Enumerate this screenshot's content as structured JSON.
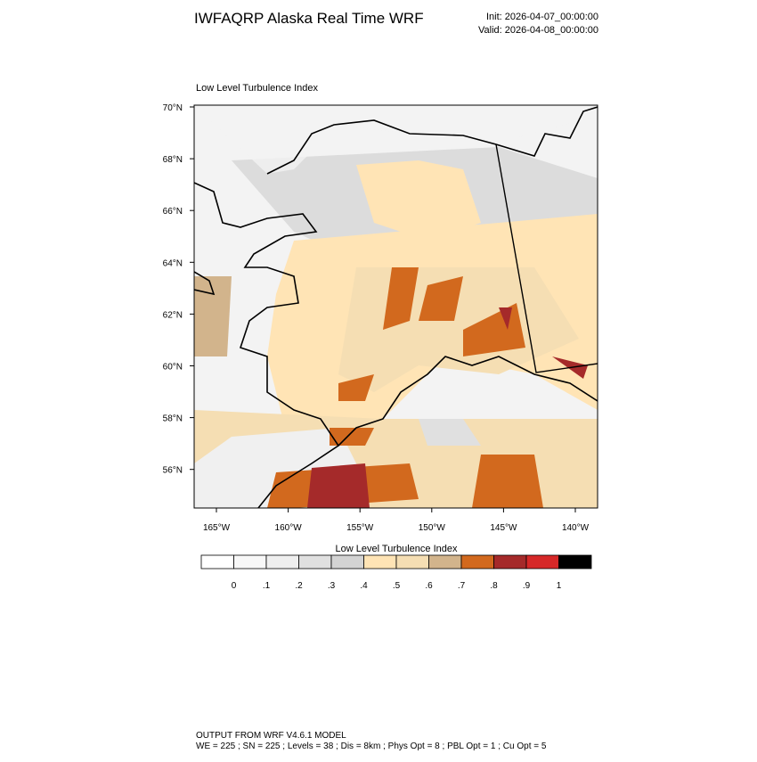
{
  "header": {
    "title": "IWFAQRP Alaska Real Time WRF",
    "init": "Init: 2026-04-07_00:00:00",
    "valid": "Valid: 2026-04-08_00:00:00"
  },
  "map": {
    "title": "Low Level Turbulence Index",
    "lat_labels": [
      "70°N",
      "68°N",
      "66°N",
      "64°N",
      "62°N",
      "60°N",
      "58°N",
      "56°N"
    ],
    "lon_labels": [
      "165°W",
      "160°W",
      "155°W",
      "150°W",
      "145°W",
      "140°W"
    ]
  },
  "colorbar": {
    "title": "Low Level Turbulence Index",
    "labels": [
      "0",
      ".1",
      ".2",
      ".3",
      ".4",
      ".5",
      ".6",
      ".7",
      ".8",
      ".9",
      "1"
    ],
    "colors": [
      "#ffffff",
      "#f8f8f8",
      "#efefef",
      "#e0e0e0",
      "#d3d3d3",
      "#ffe4b5",
      "#f5deb3",
      "#d2b48c",
      "#d2691e",
      "#a52a2a",
      "#d62828",
      "#000000"
    ]
  },
  "footer": {
    "lines": [
      "OUTPUT FROM WRF V4.6.1 MODEL",
      "WE = 225 ; SN = 225 ; Levels = 38 ; Dis = 8km ; Phys Opt = 8 ; PBL Opt = 1 ; Cu Opt = 5"
    ]
  }
}
